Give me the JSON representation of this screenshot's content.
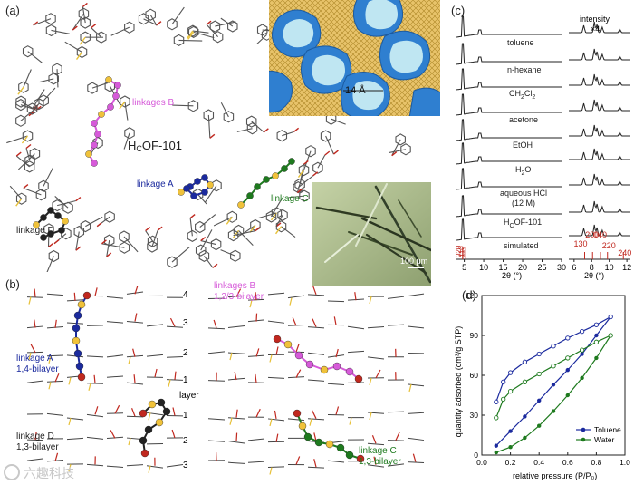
{
  "panel_a": {
    "label": "(a)",
    "title": "H",
    "title_sub": "C",
    "title_rest": "OF-101",
    "linkage_a": "linkage A",
    "linkage_b": "linkages B",
    "linkage_c": "linkage C",
    "linkage_d": "linkage D",
    "pore_size": "14 Å",
    "scale_bar": "100 μm",
    "colors": {
      "linkage_a": "#1b2a9e",
      "linkage_b": "#d65ad9",
      "linkage_c": "#1e7a1e",
      "linkage_d": "#222222",
      "yellow": "#f0c23a",
      "red": "#c0281f"
    }
  },
  "panel_b": {
    "label": "(b)",
    "layer_title": "layer",
    "layers_top": [
      "4",
      "3",
      "2",
      "1"
    ],
    "layers_bottom": [
      "1",
      "2",
      "3"
    ],
    "linkage_a": "linkage A",
    "linkage_a_sub": "1,4-bilayer",
    "linkage_b": "linkages B",
    "linkage_b_sub": "1,2/3-bilayer",
    "linkage_c": "linkage C",
    "linkage_c_sub": "1,3-bilayer",
    "linkage_d": "linkage D",
    "linkage_d_sub": "1,3-bilayer"
  },
  "panel_c": {
    "label": "(c)",
    "intensity_label": "intensity",
    "intensity_factor": "×4",
    "xlabel": "2θ (°)",
    "xlabel_right": "2θ (°)",
    "ticks_left": [
      "5",
      "10",
      "15",
      "20",
      "25",
      "30"
    ],
    "ticks_right": [
      "6",
      "8",
      "10",
      "12"
    ],
    "patterns": [
      "toluene",
      "n-hexane",
      "CH2Cl2",
      "acetone",
      "EtOH",
      "H2O",
      "aqueous HCl",
      "HCOF-101",
      "simulated"
    ],
    "pattern_labels": {
      "ch2cl2_main": "CH",
      "ch2cl2_sub1": "2",
      "ch2cl2_mid": "Cl",
      "ch2cl2_sub2": "2",
      "h2o_main": "H",
      "h2o_sub": "2",
      "h2o_rest": "O",
      "hcl_line2": "(12 M)",
      "hcof_main": "H",
      "hcof_sub": "C",
      "hcof_rest": "OF-101"
    },
    "hkl_left": [
      "020",
      "110"
    ],
    "hkl_right": [
      "130",
      "200",
      "040",
      "220",
      "240"
    ],
    "hkl_color": "#c0281f"
  },
  "panel_d": {
    "label": "(d)",
    "xlabel": "relative pressure (P/P₀)",
    "ylabel": "quantity adsorbed (cm³/g STP)",
    "colors": {
      "Toluene": "#1b2a9e",
      "Water": "#1e7a1e"
    }
  },
  "watermark": "六趣科技",
  "chart_data": [
    {
      "type": "line",
      "title": "",
      "xlabel": "relative pressure (P/P₀)",
      "ylabel": "quantity adsorbed (cm³/g STP)",
      "xlim": [
        0,
        1.0
      ],
      "ylim": [
        0,
        120
      ],
      "xticks": [
        "0.0",
        "0.2",
        "0.4",
        "0.6",
        "0.8",
        "1.0"
      ],
      "yticks": [
        "0",
        "30",
        "60",
        "90",
        "120"
      ],
      "legend": "bottom-right",
      "series": [
        {
          "name": "Toluene",
          "kind": "adsorption",
          "x": [
            0.1,
            0.2,
            0.3,
            0.4,
            0.5,
            0.6,
            0.7,
            0.8,
            0.9
          ],
          "y": [
            7,
            18,
            29,
            41,
            53,
            64,
            76,
            90,
            104
          ]
        },
        {
          "name": "Toluene",
          "kind": "desorption",
          "x": [
            0.1,
            0.15,
            0.2,
            0.3,
            0.4,
            0.5,
            0.6,
            0.7,
            0.8,
            0.9
          ],
          "y": [
            40,
            55,
            62,
            70,
            76,
            82,
            88,
            93,
            98,
            104
          ]
        },
        {
          "name": "Water",
          "kind": "adsorption",
          "x": [
            0.1,
            0.2,
            0.3,
            0.4,
            0.5,
            0.6,
            0.7,
            0.8,
            0.9
          ],
          "y": [
            2,
            6,
            13,
            22,
            33,
            45,
            58,
            73,
            90
          ]
        },
        {
          "name": "Water",
          "kind": "desorption",
          "x": [
            0.1,
            0.15,
            0.2,
            0.3,
            0.4,
            0.5,
            0.6,
            0.7,
            0.8,
            0.9
          ],
          "y": [
            28,
            42,
            48,
            55,
            61,
            67,
            73,
            79,
            85,
            90
          ]
        }
      ]
    }
  ]
}
